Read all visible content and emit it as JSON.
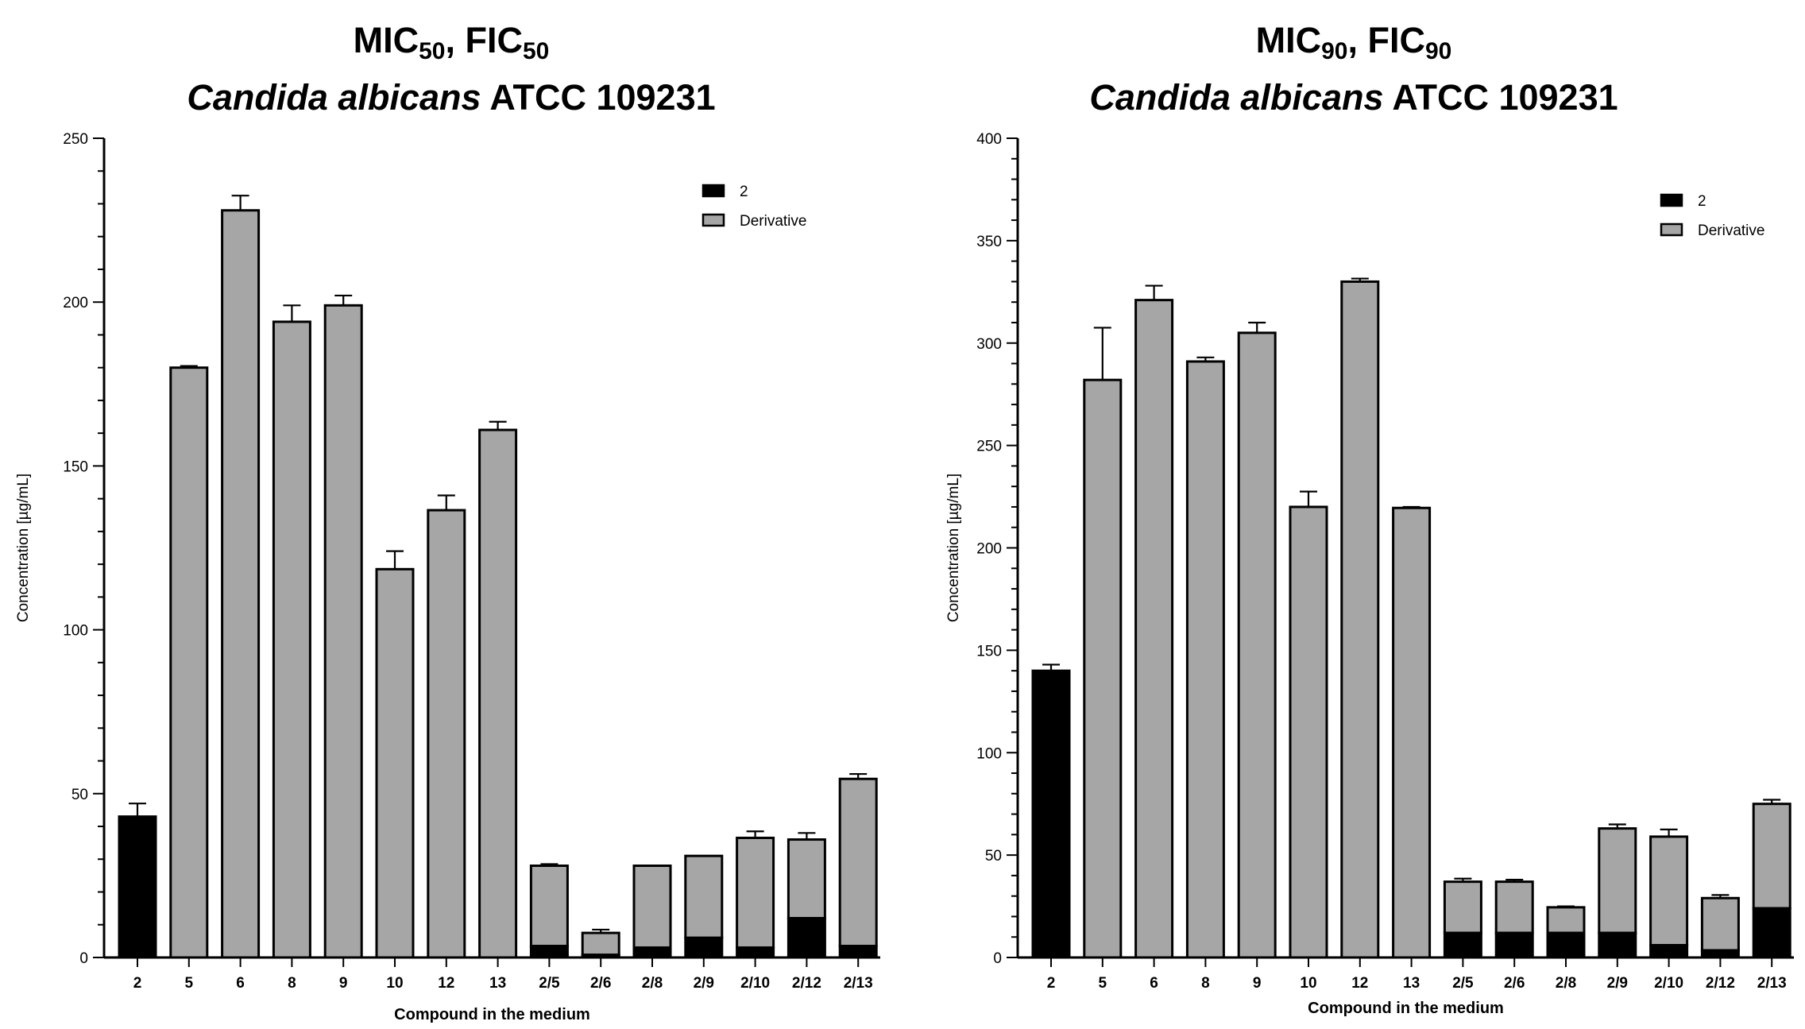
{
  "colors": {
    "compound2": "#000000",
    "derivative": "#a6a6a6",
    "axis": "#000000",
    "error": "#000000"
  },
  "chart_data": [
    {
      "type": "bar",
      "stacked": true,
      "title_main": "MIC",
      "title_sub1": "50",
      "title_mid": ", FIC",
      "title_sub2": "50",
      "title_italic": "Candida albicans",
      "title_rest": " ATCC 109231",
      "xlabel": "Compound in the medium",
      "ylabel": "Concentration [µg/mL]",
      "ylim": [
        0,
        250
      ],
      "ymajor": [
        0,
        50,
        100,
        150,
        200,
        250
      ],
      "yminor_step": 10,
      "legend": [
        "2",
        "Derivative"
      ],
      "legend_position": "top-right",
      "categories": [
        "2",
        "5",
        "6",
        "8",
        "9",
        "10",
        "12",
        "13",
        "2/5",
        "2/6",
        "2/8",
        "2/9",
        "2/10",
        "2/12",
        "2/13"
      ],
      "series": [
        {
          "name": "2",
          "values": [
            43,
            0,
            0,
            0,
            0,
            0,
            0,
            0,
            3.5,
            0.8,
            3,
            6,
            3,
            12,
            3.5
          ]
        },
        {
          "name": "Derivative",
          "values": [
            0,
            180,
            228,
            194,
            199,
            118.5,
            136.5,
            161,
            24.5,
            6.7,
            25,
            25,
            33.5,
            24,
            51
          ]
        }
      ],
      "error_tops": [
        47,
        180.5,
        232.5,
        199,
        202,
        124,
        141,
        163.5,
        28.5,
        8.5,
        28,
        31,
        38.5,
        38,
        56
      ]
    },
    {
      "type": "bar",
      "stacked": true,
      "title_main": "MIC",
      "title_sub1": "90",
      "title_mid": ", FIC",
      "title_sub2": "90",
      "title_italic": "Candida albicans",
      "title_rest": " ATCC 109231",
      "xlabel": "Compound in the medium",
      "ylabel": "Concentration [µg/mL]",
      "ylim": [
        0,
        400
      ],
      "ymajor": [
        0,
        50,
        100,
        150,
        200,
        250,
        300,
        350,
        400
      ],
      "yminor_step": 10,
      "legend": [
        "2",
        "Derivative"
      ],
      "legend_position": "top-right",
      "categories": [
        "2",
        "5",
        "6",
        "8",
        "9",
        "10",
        "12",
        "13",
        "2/5",
        "2/6",
        "2/8",
        "2/9",
        "2/10",
        "2/12",
        "2/13"
      ],
      "series": [
        {
          "name": "2",
          "values": [
            140,
            0,
            0,
            0,
            0,
            0,
            0,
            0,
            12,
            12,
            12,
            12,
            6,
            3.5,
            24
          ]
        },
        {
          "name": "Derivative",
          "values": [
            0,
            282,
            321,
            291,
            305,
            220,
            330,
            219.5,
            25,
            25,
            12.5,
            51,
            53,
            25.5,
            51
          ]
        }
      ],
      "error_tops": [
        143,
        307.5,
        328,
        293,
        310,
        227.5,
        331.5,
        220,
        38.5,
        38,
        25,
        65,
        62.5,
        30.5,
        77
      ],
      "error_bottoms": [
        140,
        257.5,
        316,
        291,
        303,
        214,
        330,
        219.5,
        37,
        37,
        24.5,
        62,
        56,
        28.5,
        74
      ]
    }
  ]
}
